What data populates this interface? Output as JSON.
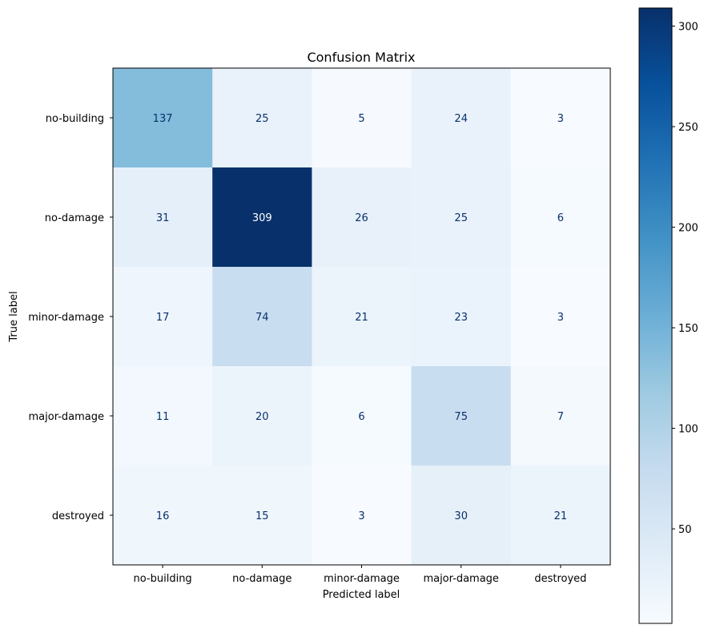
{
  "chart_data": {
    "type": "heatmap",
    "title": "Confusion Matrix",
    "xlabel": "Predicted label",
    "ylabel": "True label",
    "x_categories": [
      "no-building",
      "no-damage",
      "minor-damage",
      "major-damage",
      "destroyed"
    ],
    "y_categories": [
      "no-building",
      "no-damage",
      "minor-damage",
      "major-damage",
      "destroyed"
    ],
    "values": [
      [
        137,
        25,
        5,
        24,
        3
      ],
      [
        31,
        309,
        26,
        25,
        6
      ],
      [
        17,
        74,
        21,
        23,
        3
      ],
      [
        11,
        20,
        6,
        75,
        7
      ],
      [
        16,
        15,
        3,
        30,
        21
      ]
    ],
    "colormap": "Blues",
    "color_range": [
      3,
      309
    ],
    "colorbar_ticks": [
      50,
      100,
      150,
      200,
      250,
      300
    ],
    "text_color_light": "#ffffff",
    "text_color_dark": "#08306b"
  }
}
